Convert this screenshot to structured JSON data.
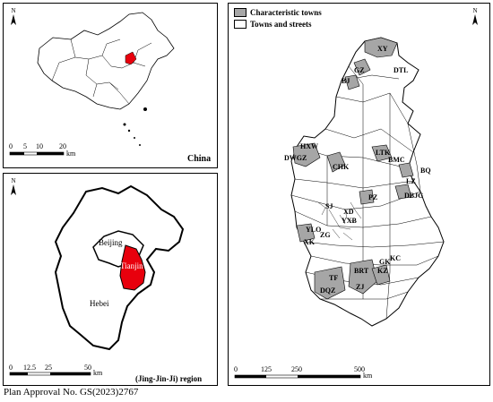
{
  "china_panel": {
    "title": "China",
    "scale_ticks": [
      "0",
      "5",
      "10",
      "20"
    ],
    "scale_unit": "km",
    "north": "N"
  },
  "jjj_panel": {
    "title": "(Jing-Jin-Ji) region",
    "labels": {
      "beijing": "Beijing",
      "tianjin": "Tianjin",
      "hebei": "Hebei"
    },
    "scale_ticks": [
      "0",
      "12.5",
      "25",
      "50"
    ],
    "scale_unit": "km",
    "north": "N"
  },
  "tianjin_panel": {
    "legend": {
      "characteristic": {
        "label": "Characteristic towns",
        "color": "#a6a6a6"
      },
      "towns": {
        "label": "Towns and streets",
        "color": "#ffffff"
      }
    },
    "scale_ticks": [
      "0",
      "125",
      "250",
      "500"
    ],
    "scale_unit": "km",
    "north": "N",
    "town_labels": [
      "XY",
      "GZ",
      "DTL",
      "BJ",
      "HXW",
      "DWGZ",
      "CHK",
      "LTK",
      "BMC",
      "BQ",
      "LZ",
      "DBJG",
      "PZ",
      "SJ",
      "XD",
      "YXB",
      "YLO",
      "ZG",
      "XK",
      "TF",
      "BRT",
      "KZ",
      "KC",
      "GK",
      "DQZ",
      "ZJ"
    ]
  },
  "footer": "Plan Approval No. GS(2023)2767",
  "colors": {
    "highlight": "#e8000d",
    "gray": "#a6a6a6"
  }
}
